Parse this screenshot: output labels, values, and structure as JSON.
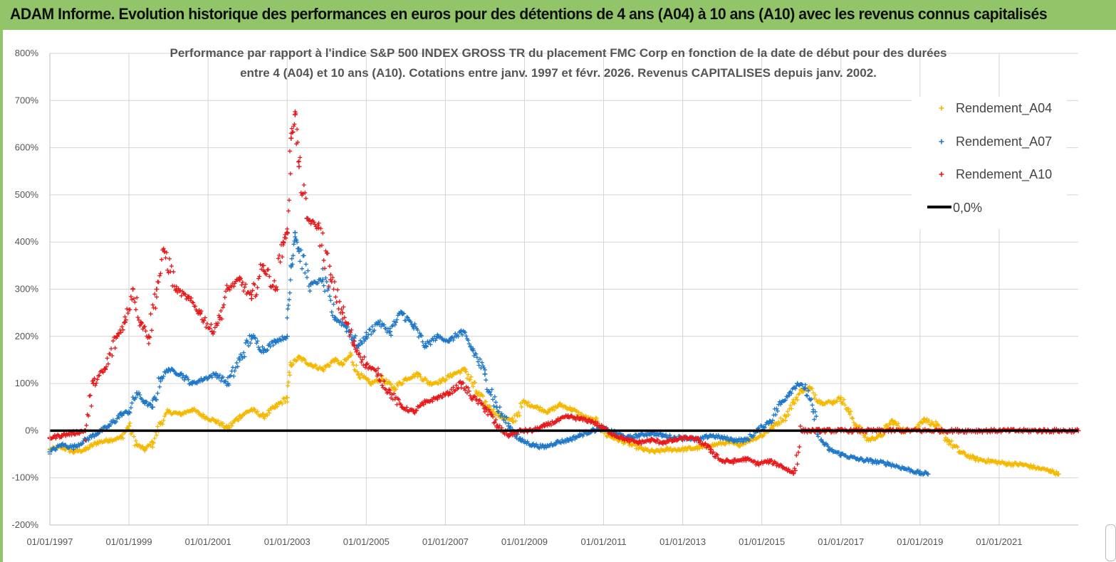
{
  "header": {
    "title": "ADAM Informe. Evolution historique des performances en euros pour des détentions de 4 ans (A04) à 10 ans (A10) avec les revenus connus capitalisés",
    "background": "#92c46a"
  },
  "chart_data": {
    "type": "scatter",
    "title_line1": "Performance par rapport à l'indice S&P 500 INDEX GROSS TR  du placement FMC Corp en fonction de la date de début pour des durées",
    "title_line2": "entre 4 (A04) et 10 ans (A10). Cotations entre janv. 1997 et févr. 2026. Revenus CAPITALISES depuis janv. 2002.",
    "xlabel": "",
    "ylabel": "",
    "xlim": [
      1997.0,
      2023.0
    ],
    "ylim": [
      -200,
      800
    ],
    "grid": true,
    "legend_position": "top-right",
    "y_ticks": [
      {
        "value": 800,
        "label": "800%"
      },
      {
        "value": 700,
        "label": "700%"
      },
      {
        "value": 600,
        "label": "600%"
      },
      {
        "value": 500,
        "label": "500%"
      },
      {
        "value": 400,
        "label": "400%"
      },
      {
        "value": 300,
        "label": "300%"
      },
      {
        "value": 200,
        "label": "200%"
      },
      {
        "value": 100,
        "label": "100%"
      },
      {
        "value": 0,
        "label": "0%"
      },
      {
        "value": -100,
        "label": "-100%"
      },
      {
        "value": -200,
        "label": "-200%"
      }
    ],
    "x_ticks": [
      {
        "value": 1997.0,
        "label": "01/01/1997"
      },
      {
        "value": 1999.0,
        "label": "01/01/1999"
      },
      {
        "value": 2001.0,
        "label": "01/01/2001"
      },
      {
        "value": 2003.0,
        "label": "01/01/2003"
      },
      {
        "value": 2005.0,
        "label": "01/01/2005"
      },
      {
        "value": 2007.0,
        "label": "01/01/2007"
      },
      {
        "value": 2009.0,
        "label": "01/01/2009"
      },
      {
        "value": 2011.0,
        "label": "01/01/2011"
      },
      {
        "value": 2013.0,
        "label": "01/01/2013"
      },
      {
        "value": 2015.0,
        "label": "01/01/2015"
      },
      {
        "value": 2017.0,
        "label": "01/01/2017"
      },
      {
        "value": 2019.0,
        "label": "01/01/2019"
      },
      {
        "value": 2021.0,
        "label": "01/01/2021"
      }
    ],
    "series": [
      {
        "name": "Rendement_A04",
        "color": "#f5b800",
        "marker": "+",
        "x": [
          1997.0,
          1997.3,
          1997.6,
          1997.9,
          1998.2,
          1998.5,
          1998.8,
          1999.0,
          1999.2,
          1999.4,
          1999.6,
          1999.8,
          2000.0,
          2000.3,
          2000.6,
          2000.9,
          2001.2,
          2001.5,
          2001.8,
          2002.1,
          2002.4,
          2002.7,
          2003.0,
          2003.1,
          2003.3,
          2003.6,
          2003.9,
          2004.2,
          2004.4,
          2004.6,
          2004.8,
          2005.1,
          2005.4,
          2005.7,
          2006.0,
          2006.3,
          2006.6,
          2006.9,
          2007.2,
          2007.5,
          2007.8,
          2008.1,
          2008.4,
          2008.7,
          2009.0,
          2009.3,
          2009.6,
          2009.9,
          2010.2,
          2010.5,
          2010.8,
          2011.1,
          2011.4,
          2011.7,
          2012.0,
          2012.3,
          2012.6,
          2012.9,
          2013.2,
          2013.5,
          2013.8,
          2014.1,
          2014.4,
          2014.7,
          2015.0,
          2015.3,
          2015.6,
          2015.8,
          2016.0,
          2016.2,
          2016.5,
          2016.8,
          2017.0,
          2017.2,
          2017.4,
          2017.7,
          2018.0,
          2018.3,
          2018.6,
          2018.9,
          2019.1,
          2019.4,
          2019.7,
          2020.0,
          2020.4,
          2020.8,
          2021.2,
          2021.6,
          2022.0,
          2022.3,
          2022.5
        ],
        "y": [
          -40,
          -35,
          -45,
          -40,
          -25,
          -20,
          -15,
          10,
          -30,
          -40,
          -25,
          15,
          40,
          35,
          45,
          30,
          20,
          5,
          30,
          45,
          30,
          50,
          70,
          140,
          155,
          140,
          130,
          150,
          140,
          160,
          120,
          100,
          110,
          90,
          110,
          120,
          100,
          105,
          120,
          130,
          80,
          50,
          30,
          20,
          60,
          50,
          40,
          55,
          45,
          30,
          20,
          -10,
          -20,
          -30,
          -40,
          -45,
          -40,
          -40,
          -38,
          -35,
          -30,
          -25,
          -30,
          -20,
          -10,
          10,
          30,
          60,
          85,
          90,
          60,
          60,
          70,
          40,
          10,
          -20,
          -10,
          20,
          0,
          5,
          25,
          10,
          -20,
          -45,
          -60,
          -65,
          -70,
          -72,
          -80,
          -85,
          -92
        ]
      },
      {
        "name": "Rendement_A07",
        "color": "#1f77c8",
        "marker": "+",
        "x": [
          1997.0,
          1997.3,
          1997.6,
          1997.9,
          1998.2,
          1998.5,
          1998.8,
          1999.0,
          1999.2,
          1999.4,
          1999.6,
          1999.8,
          2000.0,
          2000.3,
          2000.6,
          2000.9,
          2001.2,
          2001.5,
          2001.8,
          2002.1,
          2002.4,
          2002.7,
          2003.0,
          2003.1,
          2003.2,
          2003.3,
          2003.6,
          2003.9,
          2004.2,
          2004.5,
          2004.8,
          2005.0,
          2005.3,
          2005.6,
          2005.9,
          2006.2,
          2006.5,
          2006.8,
          2007.1,
          2007.4,
          2007.7,
          2008.0,
          2008.3,
          2008.6,
          2008.9,
          2009.2,
          2009.5,
          2009.8,
          2010.1,
          2010.4,
          2010.7,
          2011.0,
          2011.3,
          2011.6,
          2011.9,
          2012.2,
          2012.5,
          2012.8,
          2013.1,
          2013.4,
          2013.7,
          2014.0,
          2014.3,
          2014.6,
          2014.9,
          2015.2,
          2015.5,
          2015.7,
          2015.9,
          2016.1,
          2016.3,
          2016.5,
          2016.7,
          2017.0,
          2017.4,
          2017.8,
          2018.2,
          2018.6,
          2019.0,
          2019.2
        ],
        "y": [
          -45,
          -30,
          -35,
          -20,
          -5,
          10,
          35,
          40,
          80,
          60,
          50,
          110,
          130,
          120,
          100,
          110,
          120,
          100,
          150,
          200,
          170,
          190,
          200,
          350,
          420,
          380,
          310,
          320,
          240,
          220,
          180,
          200,
          230,
          210,
          250,
          220,
          180,
          200,
          190,
          210,
          170,
          120,
          50,
          10,
          -20,
          -30,
          -35,
          -25,
          -20,
          -10,
          0,
          5,
          -5,
          -15,
          -10,
          -5,
          -10,
          -15,
          -15,
          -20,
          -10,
          -15,
          -20,
          -20,
          0,
          20,
          60,
          80,
          100,
          90,
          40,
          -20,
          -40,
          -50,
          -60,
          -65,
          -70,
          -80,
          -90,
          -92
        ]
      },
      {
        "name": "Rendement_A10",
        "color": "#e8191a",
        "marker": "+",
        "x": [
          1997.0,
          1997.3,
          1997.6,
          1997.9,
          1998.1,
          1998.4,
          1998.7,
          1998.9,
          1999.1,
          1999.3,
          1999.5,
          1999.7,
          1999.9,
          2000.2,
          2000.5,
          2000.8,
          2001.1,
          2001.3,
          2001.5,
          2001.8,
          2002.1,
          2002.4,
          2002.7,
          2002.9,
          2003.0,
          2003.1,
          2003.2,
          2003.3,
          2003.5,
          2003.8,
          2004.1,
          2004.4,
          2004.7,
          2005.0,
          2005.3,
          2005.6,
          2005.9,
          2006.2,
          2006.5,
          2006.8,
          2007.1,
          2007.4,
          2007.7,
          2008.0,
          2008.3,
          2008.6,
          2008.9,
          2009.2,
          2009.5,
          2009.8,
          2010.1,
          2010.4,
          2010.7,
          2011.0,
          2011.3,
          2011.6,
          2011.9,
          2012.2,
          2012.5,
          2012.8,
          2013.1,
          2013.4,
          2013.7,
          2014.0,
          2014.3,
          2014.6,
          2014.9,
          2015.2,
          2015.5,
          2015.8,
          2016.0,
          2016.2,
          2016.6,
          2017.0,
          2017.5,
          2018.0,
          2018.5,
          2019.0,
          2019.5,
          2020.0,
          2020.5,
          2021.0,
          2021.5,
          2022.0,
          2022.5,
          2023.0
        ],
        "y": [
          -15,
          -10,
          -5,
          0,
          100,
          130,
          200,
          230,
          300,
          230,
          200,
          300,
          380,
          300,
          280,
          250,
          210,
          240,
          300,
          320,
          280,
          350,
          300,
          400,
          420,
          620,
          670,
          560,
          450,
          430,
          320,
          250,
          180,
          140,
          120,
          80,
          50,
          40,
          60,
          70,
          80,
          100,
          70,
          50,
          10,
          -10,
          0,
          0,
          10,
          20,
          30,
          25,
          20,
          5,
          -10,
          -20,
          -25,
          -20,
          -25,
          -20,
          -15,
          -20,
          -40,
          -65,
          -65,
          -60,
          -70,
          -65,
          -75,
          -90,
          0,
          0,
          0,
          0,
          0,
          0,
          0,
          0,
          0,
          0,
          0,
          0,
          0,
          0,
          0,
          0
        ]
      }
    ],
    "reference_line": {
      "name": "0,0%",
      "y": 0,
      "color": "#000000"
    }
  },
  "corner_widget": "scroll-handle"
}
